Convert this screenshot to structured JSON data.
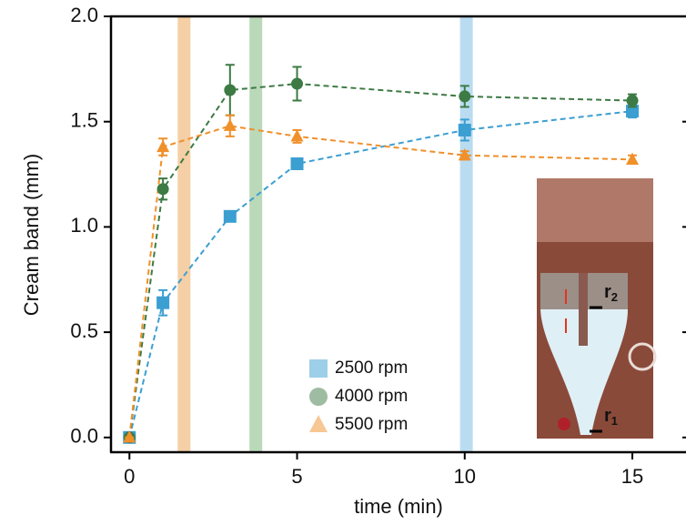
{
  "chart_data": {
    "type": "line",
    "x_label": "time (min)",
    "y_label": "Cream band (mm)",
    "xlim": [
      -0.55,
      16.6
    ],
    "ylim": [
      -0.07,
      2.0
    ],
    "xticks": [
      0,
      5,
      10,
      15
    ],
    "yticks": [
      {
        "value": 0,
        "label": "0.0"
      },
      {
        "value": 0.5,
        "label": "0.5"
      },
      {
        "value": 1,
        "label": "1.0"
      },
      {
        "value": 1.5,
        "label": "1.5"
      },
      {
        "value": 2,
        "label": "2.0"
      }
    ],
    "x": [
      0,
      1,
      3,
      5,
      10,
      15
    ],
    "series": [
      {
        "name": "2500 rpm",
        "color": "#3b9fd2",
        "marker": "square",
        "values": [
          0,
          0.64,
          1.05,
          1.3,
          1.46,
          1.55
        ],
        "errors": [
          0,
          0.06,
          0.02,
          0.02,
          0.05,
          0.03
        ]
      },
      {
        "name": "4000 rpm",
        "color": "#3d7a44",
        "marker": "circle",
        "values": [
          0,
          1.18,
          1.65,
          1.68,
          1.62,
          1.6
        ],
        "errors": [
          0,
          0.05,
          0.12,
          0.08,
          0.05,
          0.03
        ]
      },
      {
        "name": "5500 rpm",
        "color": "#f0902a",
        "marker": "triangle",
        "values": [
          0,
          1.38,
          1.48,
          1.43,
          1.34,
          1.32
        ],
        "errors": [
          0,
          0.04,
          0.05,
          0.03,
          0.02,
          0.02
        ]
      }
    ],
    "bands": [
      {
        "x": 1.63,
        "color": "#f3c38f"
      },
      {
        "x": 3.77,
        "color": "#a9cfa8"
      },
      {
        "x": 10.05,
        "color": "#a9d3ee"
      }
    ],
    "inset_labels": [
      {
        "main": "r",
        "sub": "2"
      },
      {
        "main": "r",
        "sub": "1"
      }
    ]
  }
}
